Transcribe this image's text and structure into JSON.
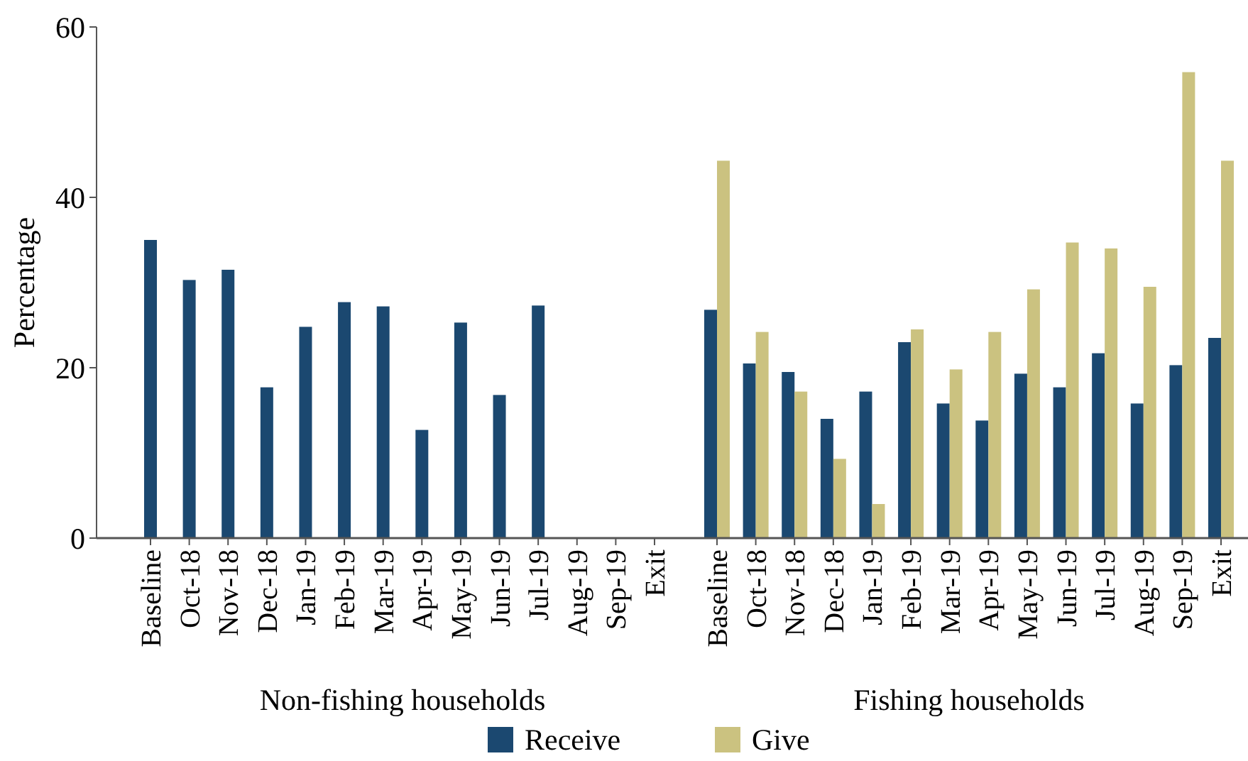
{
  "chart_data": [
    {
      "type": "bar",
      "xlabel": "Non-fishing households",
      "ylabel": "Percentage",
      "categories": [
        "Baseline",
        "Oct-18",
        "Nov-18",
        "Dec-18",
        "Jan-19",
        "Feb-19",
        "Mar-19",
        "Apr-19",
        "May-19",
        "Jun-19",
        "Jul-19",
        "Aug-19",
        "Sep-19",
        "Exit"
      ],
      "series": [
        {
          "color": "#1b4870",
          "values": [
            35.0,
            30.3,
            31.5,
            17.7,
            24.8,
            27.7,
            27.2,
            12.7,
            25.3,
            16.8,
            27.3,
            null,
            null,
            null
          ]
        }
      ],
      "ylim": [
        0,
        60
      ],
      "yticks": [
        0,
        20,
        40,
        60
      ]
    },
    {
      "type": "bar",
      "xlabel": "Fishing households",
      "categories": [
        "Baseline",
        "Oct-18",
        "Nov-18",
        "Dec-18",
        "Jan-19",
        "Feb-19",
        "Mar-19",
        "Apr-19",
        "May-19",
        "Jun-19",
        "Jul-19",
        "Aug-19",
        "Sep-19",
        "Exit"
      ],
      "series": [
        {
          "name": "Receive",
          "color": "#1b4870",
          "values": [
            26.8,
            20.5,
            19.5,
            14.0,
            17.2,
            23.0,
            15.8,
            13.8,
            19.3,
            17.7,
            21.7,
            15.8,
            20.3,
            23.5
          ]
        },
        {
          "name": "Give",
          "color": "#cbc280",
          "values": [
            44.3,
            24.2,
            17.2,
            9.3,
            4.0,
            24.5,
            19.8,
            24.2,
            29.2,
            34.7,
            34.0,
            29.5,
            54.7,
            44.3
          ]
        }
      ],
      "ylim": [
        0,
        60
      ],
      "tick_labels": "x",
      "legend": "bottom"
    }
  ]
}
